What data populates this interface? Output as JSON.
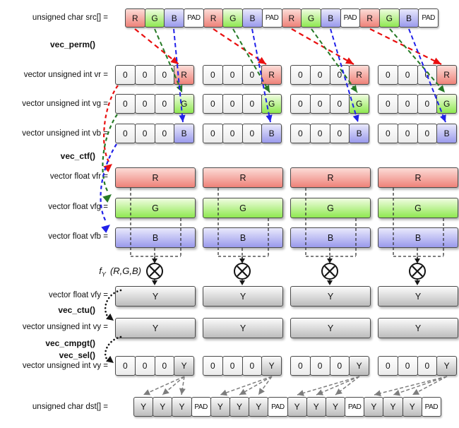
{
  "colors": {
    "red_cell_top": "#fcdcd7",
    "red_cell_bottom": "#ee8279",
    "green_cell_top": "#f0fde1",
    "green_cell_bottom": "#8fe851",
    "blue_cell_top": "#e9e9fc",
    "blue_cell_bottom": "#9a9aec",
    "gray_cell_top": "#fbfbfb",
    "gray_cell_bottom": "#bcbcbc",
    "zero_cell_top": "#ffffff",
    "zero_cell_bottom": "#ebebeb",
    "pad_cell": "#ffffff",
    "arrow_red": "#e90f0f",
    "arrow_green": "#26７a26",
    "arrow_blue": "#2121e9",
    "arrow_gray": "#7d7d7d",
    "line_black": "#161616",
    "bracket_gray": "#333333"
  },
  "rows": {
    "src": {
      "label": "unsigned char src[] =",
      "cells": [
        "R",
        "G",
        "B",
        "PAD",
        "R",
        "G",
        "B",
        "PAD",
        "R",
        "G",
        "B",
        "PAD",
        "R",
        "G",
        "B",
        "PAD"
      ]
    },
    "vr": {
      "label": "vector unsigned int vr =",
      "group": [
        "0",
        "0",
        "0",
        "R"
      ]
    },
    "vg": {
      "label": "vector unsigned int vg =",
      "group": [
        "0",
        "0",
        "0",
        "G"
      ]
    },
    "vb": {
      "label": "vector unsigned int vb =",
      "group": [
        "0",
        "0",
        "0",
        "B"
      ]
    },
    "vfr": {
      "label": "vector float vfr =",
      "bar": "R"
    },
    "vfg": {
      "label": "vector float vfg =",
      "bar": "G"
    },
    "vfb": {
      "label": "vector float vfb =",
      "bar": "B"
    },
    "vfy": {
      "label": "vector float vfy =",
      "bar": "Y"
    },
    "vy": {
      "label": "vector unsigned int vy =",
      "bar": "Y"
    },
    "vy2": {
      "label": "vector unsigned int vy =",
      "group": [
        "0",
        "0",
        "0",
        "Y"
      ]
    },
    "dst": {
      "label": "unsigned char dst[] =",
      "cells": [
        "Y",
        "Y",
        "Y",
        "PAD",
        "Y",
        "Y",
        "Y",
        "PAD",
        "Y",
        "Y",
        "Y",
        "PAD",
        "Y",
        "Y",
        "Y",
        "PAD"
      ]
    }
  },
  "functions": {
    "vec_perm": "vec_perm()",
    "vec_ctf": "vec_ctf()",
    "vec_ctu": "vec_ctu()",
    "vec_cmpgt": "vec_cmpgt()",
    "vec_sel": "vec_sel()"
  },
  "formula": {
    "f": "f",
    "subscript": "Y",
    "args": "(R,G,B)",
    "operator_icon": "multiply-circle"
  }
}
